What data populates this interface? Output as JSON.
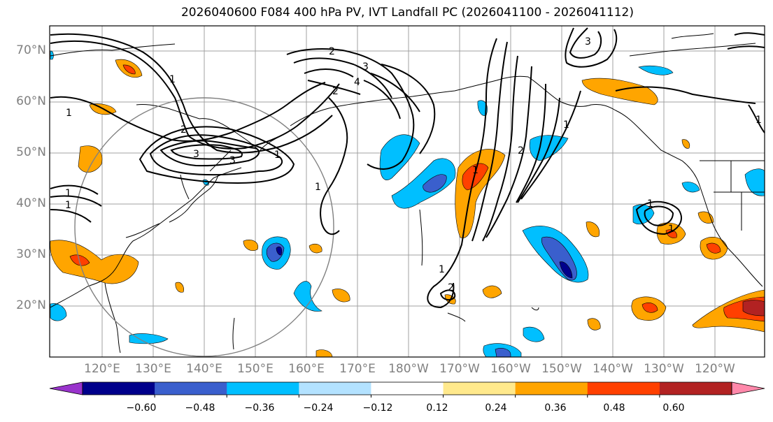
{
  "title": "2026040600 F084 400 hPa PV, IVT Landfall PC (2026041100 - 2026041112)",
  "lat_labels": [
    "70°N",
    "60°N",
    "50°N",
    "40°N",
    "30°N",
    "20°N"
  ],
  "lon_labels": [
    "120°E",
    "130°E",
    "140°E",
    "150°E",
    "160°E",
    "170°E",
    "180°W",
    "170°W",
    "160°W",
    "150°W",
    "140°W",
    "130°W",
    "120°W"
  ],
  "colorbar": {
    "ticks": [
      "−0.60",
      "−0.48",
      "−0.36",
      "−0.24",
      "−0.12",
      "0.12",
      "0.24",
      "0.36",
      "0.48",
      "0.60"
    ],
    "colors": [
      "#9933cc",
      "#00008b",
      "#3a5fcd",
      "#00bfff",
      "#b3e2ff",
      "#ffffff",
      "#ffe98c",
      "#ffa500",
      "#ff4000",
      "#b22222",
      "#ff88aa"
    ]
  },
  "contour_labels": [
    "1",
    "1",
    "1",
    "1",
    "2",
    "2",
    "2",
    "3",
    "3",
    "3",
    "4",
    "1",
    "1",
    "2",
    "1",
    "1",
    "3",
    "1",
    "1",
    "2",
    "1",
    "1"
  ],
  "colors": {
    "land": "#000000",
    "grid": "#a0a0a0",
    "contour": "#000000"
  }
}
